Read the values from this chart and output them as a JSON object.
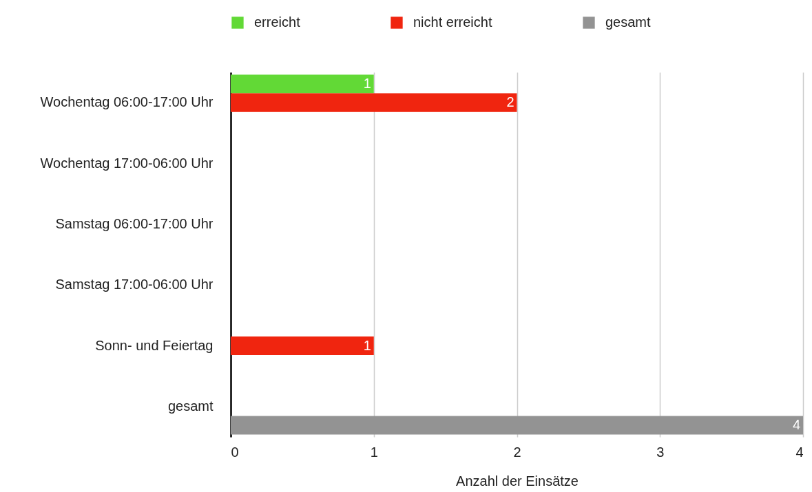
{
  "chart_data": {
    "type": "bar",
    "orientation": "horizontal",
    "categories": [
      "Wochentag 06:00-17:00 Uhr",
      "Wochentag 17:00-06:00 Uhr",
      "Samstag 06:00-17:00 Uhr",
      "Samstag 17:00-06:00 Uhr",
      "Sonn- und Feiertag",
      "gesamt"
    ],
    "series": [
      {
        "name": "erreicht",
        "color": "#62d936",
        "values": [
          1,
          null,
          null,
          null,
          null,
          null
        ]
      },
      {
        "name": "nicht erreicht",
        "color": "#f0250f",
        "values": [
          2,
          null,
          null,
          null,
          1,
          null
        ]
      },
      {
        "name": "gesamt",
        "color": "#939393",
        "values": [
          null,
          null,
          null,
          null,
          null,
          4
        ]
      }
    ],
    "xlabel": "Anzahl der Einsätze",
    "xlim": [
      0,
      4
    ],
    "xticks": [
      0,
      1,
      2,
      3,
      4
    ],
    "grid": "x",
    "legend": "top",
    "data_labels": true
  }
}
